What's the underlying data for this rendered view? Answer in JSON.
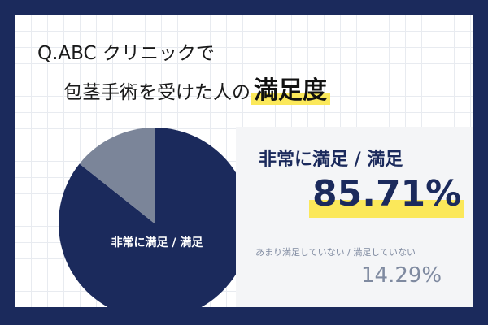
{
  "title": {
    "line1": "Q.ABC クリニックで",
    "line2_prefix": "包茎手術を受けた人の",
    "line2_emphasis": "満足度"
  },
  "colors": {
    "background": "#1b2a5c",
    "navy": "#1b2a5c",
    "slate": "#7b8599",
    "highlight": "#fbe85a"
  },
  "chart_data": {
    "type": "pie",
    "title": "Q.ABC クリニックで包茎手術を受けた人の満足度",
    "slices": [
      {
        "label": "非常に満足 / 満足",
        "value": 85.71,
        "display": "85.71%",
        "color": "#1b2a5c"
      },
      {
        "label": "あまり満足していない / 満足していない",
        "value": 14.29,
        "display": "14.29%",
        "color": "#7b8599"
      }
    ],
    "pie_label": "非常に満足 / 満足"
  }
}
